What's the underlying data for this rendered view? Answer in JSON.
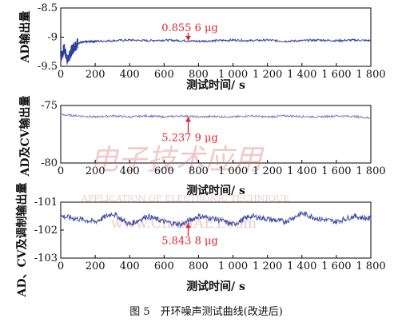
{
  "chart_data": [
    {
      "type": "line",
      "xlabel": "测试时间/ s",
      "ylabel": "AD输出量",
      "xlim": [
        0,
        1800
      ],
      "ylim": [
        -9.5,
        -8.5
      ],
      "x_ticks": [
        "0",
        "200",
        "400",
        "600",
        "800",
        "1 000",
        "1 200",
        "1 400",
        "1 600",
        "1 800"
      ],
      "y_ticks": [
        "-8.5",
        "-9",
        "-9.5"
      ],
      "series": [
        {
          "color": "#2c3f9a",
          "x": [
            0,
            20,
            40,
            60,
            80,
            100,
            150,
            200,
            300,
            400,
            500,
            600,
            700,
            800,
            900,
            1000,
            1100,
            1200,
            1300,
            1400,
            1500,
            1600,
            1700,
            1800
          ],
          "values": [
            -9.35,
            -9.2,
            -9.4,
            -9.25,
            -9.15,
            -9.1,
            -9.08,
            -9.07,
            -9.06,
            -9.05,
            -9.06,
            -9.05,
            -9.06,
            -9.07,
            -9.06,
            -9.05,
            -9.06,
            -9.05,
            -9.07,
            -9.06,
            -9.05,
            -9.06,
            -9.05,
            -9.06
          ]
        }
      ],
      "annotation": {
        "text": "0.855 6 μg",
        "x": 740,
        "y": -9.06
      }
    },
    {
      "type": "line",
      "xlabel": "测试时间/ s",
      "ylabel": "AD及CV输出量",
      "xlim": [
        0,
        1800
      ],
      "ylim": [
        -80,
        -75
      ],
      "x_ticks": [
        "0",
        "200",
        "400",
        "600",
        "800",
        "1 000",
        "1 200",
        "1 400",
        "1 600",
        "1 800"
      ],
      "y_ticks": [
        "-75",
        "-80"
      ],
      "series": [
        {
          "color": "#7b84c4",
          "x": [
            0,
            100,
            200,
            300,
            400,
            500,
            600,
            700,
            800,
            900,
            1000,
            1100,
            1200,
            1300,
            1400,
            1500,
            1600,
            1700,
            1800
          ],
          "values": [
            -75.8,
            -75.9,
            -76.0,
            -75.9,
            -76.0,
            -75.9,
            -76.0,
            -75.9,
            -76.0,
            -75.95,
            -76.0,
            -75.9,
            -76.0,
            -75.9,
            -75.95,
            -76.0,
            -75.9,
            -75.95,
            -76.1
          ]
        }
      ],
      "annotation": {
        "text": "5.237 9 μg",
        "x": 740,
        "y": -76.0
      }
    },
    {
      "type": "line",
      "xlabel": "测试时间/ s",
      "ylabel": "AD、CV及调制输出量",
      "xlim": [
        0,
        1800
      ],
      "ylim": [
        -103,
        -101
      ],
      "x_ticks": [
        "0",
        "200",
        "400",
        "600",
        "800",
        "1 000",
        "1 200",
        "1 400",
        "1 600",
        "1 800"
      ],
      "y_ticks": [
        "-101",
        "-102",
        "-103"
      ],
      "series": [
        {
          "color": "#3f4ea8",
          "x": [
            0,
            100,
            200,
            300,
            400,
            500,
            600,
            700,
            800,
            900,
            1000,
            1100,
            1200,
            1300,
            1400,
            1500,
            1600,
            1700,
            1800
          ],
          "values": [
            -101.5,
            -101.6,
            -101.7,
            -101.4,
            -101.8,
            -101.5,
            -101.7,
            -101.8,
            -101.5,
            -101.6,
            -101.8,
            -101.5,
            -101.6,
            -101.7,
            -101.4,
            -101.6,
            -101.7,
            -101.5,
            -101.6
          ]
        }
      ],
      "annotation": {
        "text": "5.843 8 μg",
        "x": 740,
        "y": -101.75
      }
    }
  ],
  "caption": "图 5　开环噪声测试曲线(改进后)",
  "watermark": {
    "chinese": "电子技术应用",
    "english": "APPLICATION OF ELECTRONIC TECHNIQUE",
    "url": "www.ChinaAET.com"
  }
}
